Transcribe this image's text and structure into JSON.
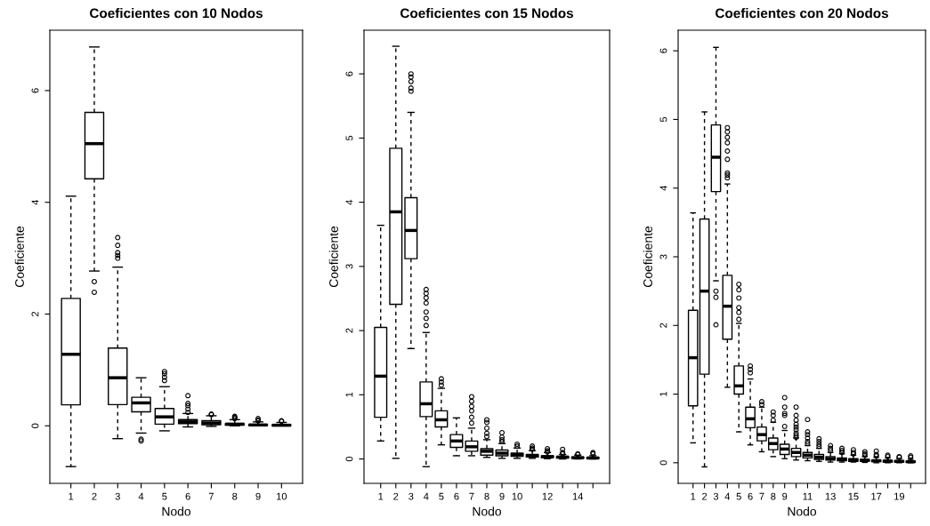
{
  "chart_data": [
    {
      "type": "box",
      "title": "Coeficientes con 10 Nodos",
      "xlabel": "Nodo",
      "ylabel": "Coeficiente",
      "categories": [
        "1",
        "2",
        "3",
        "4",
        "5",
        "6",
        "7",
        "8",
        "9",
        "10"
      ],
      "ylim": [
        -1.03,
        7.08
      ],
      "yticks": [
        0,
        2,
        4,
        6
      ],
      "grid": false,
      "boxes": [
        {
          "low": -0.73,
          "q1": 0.375,
          "median": 1.28,
          "q3": 2.28,
          "high": 4.11
        },
        {
          "low": 2.77,
          "q1": 4.42,
          "median": 5.05,
          "q3": 5.61,
          "high": 6.78,
          "outliers": [
            2.58,
            2.39
          ]
        },
        {
          "low": -0.23,
          "q1": 0.38,
          "median": 0.86,
          "q3": 1.39,
          "high": 2.84,
          "outliers": [
            3.37,
            3.23,
            3.1,
            3.05,
            3.0
          ]
        },
        {
          "low": -0.13,
          "q1": 0.25,
          "median": 0.41,
          "q3": 0.51,
          "high": 0.86,
          "outliers": [
            -0.24,
            -0.27
          ]
        },
        {
          "low": -0.09,
          "q1": 0.03,
          "median": 0.16,
          "q3": 0.31,
          "high": 0.7,
          "outliers": [
            0.97,
            0.93,
            0.87,
            0.81
          ]
        },
        {
          "low": -0.02,
          "q1": 0.04,
          "median": 0.07,
          "q3": 0.11,
          "high": 0.22,
          "outliers": [
            0.54,
            0.4,
            0.36,
            0.3,
            0.24
          ]
        },
        {
          "low": -0.01,
          "q1": 0.02,
          "median": 0.05,
          "q3": 0.09,
          "high": 0.18,
          "outliers": [
            0.21,
            0.2
          ]
        },
        {
          "low": 0.0,
          "q1": 0.01,
          "median": 0.03,
          "q3": 0.04,
          "high": 0.11,
          "outliers": [
            0.17,
            0.15,
            0.13
          ]
        },
        {
          "low": 0.0,
          "q1": 0.005,
          "median": 0.015,
          "q3": 0.025,
          "high": 0.07,
          "outliers": [
            0.13,
            0.1,
            0.09
          ]
        },
        {
          "low": 0.0,
          "q1": 0.003,
          "median": 0.01,
          "q3": 0.02,
          "high": 0.06,
          "outliers": [
            0.09,
            0.08
          ]
        }
      ]
    },
    {
      "type": "box",
      "title": "Coeficientes con 15 Nodos",
      "xlabel": "Nodo",
      "ylabel": "Coeficiente",
      "categories": [
        "1",
        "2",
        "3",
        "4",
        "5",
        "6",
        "7",
        "8",
        "9",
        "10",
        null,
        "12",
        null,
        "14",
        null
      ],
      "ylim": [
        -0.38,
        6.68
      ],
      "yticks": [
        0,
        1,
        2,
        3,
        4,
        5,
        6
      ],
      "grid": false,
      "boxes": [
        {
          "low": 0.28,
          "q1": 0.65,
          "median": 1.29,
          "q3": 2.05,
          "high": 3.64
        },
        {
          "low": 0.01,
          "q1": 2.41,
          "median": 3.85,
          "q3": 4.84,
          "high": 6.43
        },
        {
          "low": 1.72,
          "q1": 3.12,
          "median": 3.56,
          "q3": 4.07,
          "high": 5.4,
          "outliers": [
            6.0,
            5.95,
            5.88,
            5.78,
            5.73
          ]
        },
        {
          "low": -0.12,
          "q1": 0.66,
          "median": 0.86,
          "q3": 1.2,
          "high": 1.97,
          "outliers": [
            2.64,
            2.58,
            2.51,
            2.43,
            2.29,
            2.19,
            2.08
          ]
        },
        {
          "low": 0.22,
          "q1": 0.5,
          "median": 0.61,
          "q3": 0.75,
          "high": 1.1,
          "outliers": [
            1.25,
            1.2,
            1.15
          ]
        },
        {
          "low": 0.05,
          "q1": 0.18,
          "median": 0.28,
          "q3": 0.38,
          "high": 0.64
        },
        {
          "low": 0.05,
          "q1": 0.12,
          "median": 0.19,
          "q3": 0.28,
          "high": 0.48,
          "outliers": [
            0.97,
            0.9,
            0.82,
            0.75,
            0.65,
            0.56
          ]
        },
        {
          "low": 0.025,
          "q1": 0.06,
          "median": 0.12,
          "q3": 0.16,
          "high": 0.3,
          "outliers": [
            0.61,
            0.57,
            0.48,
            0.4,
            0.35
          ]
        },
        {
          "low": 0.01,
          "q1": 0.05,
          "median": 0.09,
          "q3": 0.14,
          "high": 0.24,
          "outliers": [
            0.41,
            0.34,
            0.3,
            0.27
          ]
        },
        {
          "low": 0.01,
          "q1": 0.04,
          "median": 0.065,
          "q3": 0.09,
          "high": 0.17,
          "outliers": [
            0.23,
            0.2
          ]
        },
        {
          "low": 0.01,
          "q1": 0.03,
          "median": 0.05,
          "q3": 0.07,
          "high": 0.13,
          "outliers": [
            0.2,
            0.17,
            0.15
          ]
        },
        {
          "low": 0.005,
          "q1": 0.02,
          "median": 0.035,
          "q3": 0.05,
          "high": 0.1,
          "outliers": [
            0.16,
            0.13,
            0.11
          ]
        },
        {
          "low": 0.0,
          "q1": 0.015,
          "median": 0.03,
          "q3": 0.04,
          "high": 0.07,
          "outliers": [
            0.15,
            0.1,
            0.08
          ]
        },
        {
          "low": 0.0,
          "q1": 0.01,
          "median": 0.02,
          "q3": 0.03,
          "high": 0.06,
          "outliers": [
            0.08,
            0.07
          ]
        },
        {
          "low": 0.0,
          "q1": 0.008,
          "median": 0.015,
          "q3": 0.025,
          "high": 0.05,
          "outliers": [
            0.1,
            0.08
          ]
        }
      ]
    },
    {
      "type": "box",
      "title": "Coeficientes con 20 Nodos",
      "xlabel": "Nodo",
      "ylabel": "Coeficiente",
      "categories": [
        "1",
        "2",
        "3",
        "4",
        "5",
        "6",
        "7",
        "8",
        "9",
        null,
        "11",
        null,
        "13",
        null,
        "15",
        null,
        "17",
        null,
        "19",
        null
      ],
      "ylim": [
        -0.3,
        6.3
      ],
      "yticks": [
        0,
        1,
        2,
        3,
        4,
        5,
        6
      ],
      "grid": false,
      "boxes": [
        {
          "low": 0.29,
          "q1": 0.83,
          "median": 1.53,
          "q3": 2.22,
          "high": 3.64
        },
        {
          "low": -0.06,
          "q1": 1.29,
          "median": 2.5,
          "q3": 3.55,
          "high": 5.11
        },
        {
          "low": 2.65,
          "q1": 3.95,
          "median": 4.45,
          "q3": 4.92,
          "high": 6.05,
          "outliers": [
            2.5,
            2.41,
            2.01
          ]
        },
        {
          "low": 1.1,
          "q1": 1.8,
          "median": 2.28,
          "q3": 2.73,
          "high": 4.06,
          "outliers": [
            4.88,
            4.82,
            4.74,
            4.66,
            4.54,
            4.42,
            4.22,
            4.19,
            4.15
          ]
        },
        {
          "low": 0.45,
          "q1": 1.0,
          "median": 1.12,
          "q3": 1.41,
          "high": 2.03,
          "outliers": [
            2.6,
            2.52,
            2.4,
            2.26,
            2.19,
            2.09
          ]
        },
        {
          "low": 0.26,
          "q1": 0.51,
          "median": 0.64,
          "q3": 0.81,
          "high": 1.22,
          "outliers": [
            1.41,
            1.36,
            1.31
          ]
        },
        {
          "low": 0.16,
          "q1": 0.32,
          "median": 0.41,
          "q3": 0.52,
          "high": 0.81,
          "outliers": [
            0.89,
            0.85
          ]
        },
        {
          "low": 0.09,
          "q1": 0.19,
          "median": 0.28,
          "q3": 0.36,
          "high": 0.59,
          "outliers": [
            0.74,
            0.69,
            0.62
          ]
        },
        {
          "low": 0.06,
          "q1": 0.12,
          "median": 0.2,
          "q3": 0.27,
          "high": 0.47,
          "outliers": [
            0.95,
            0.81,
            0.72,
            0.69,
            0.53
          ]
        },
        {
          "low": 0.04,
          "q1": 0.09,
          "median": 0.15,
          "q3": 0.21,
          "high": 0.36,
          "outliers": [
            0.81,
            0.69,
            0.62,
            0.56,
            0.52,
            0.48,
            0.43,
            0.4,
            0.37
          ]
        },
        {
          "low": 0.03,
          "q1": 0.07,
          "median": 0.11,
          "q3": 0.15,
          "high": 0.25,
          "outliers": [
            0.63,
            0.45,
            0.41,
            0.36,
            0.31,
            0.28
          ]
        },
        {
          "low": 0.02,
          "q1": 0.05,
          "median": 0.08,
          "q3": 0.12,
          "high": 0.21,
          "outliers": [
            0.35,
            0.31,
            0.27,
            0.24
          ]
        },
        {
          "low": 0.01,
          "q1": 0.04,
          "median": 0.06,
          "q3": 0.09,
          "high": 0.15,
          "outliers": [
            0.25,
            0.21,
            0.18
          ]
        },
        {
          "low": 0.01,
          "q1": 0.03,
          "median": 0.05,
          "q3": 0.07,
          "high": 0.13,
          "outliers": [
            0.21,
            0.18,
            0.15
          ]
        },
        {
          "low": 0.01,
          "q1": 0.02,
          "median": 0.04,
          "q3": 0.06,
          "high": 0.11,
          "outliers": [
            0.19,
            0.15,
            0.13
          ]
        },
        {
          "low": 0.005,
          "q1": 0.02,
          "median": 0.035,
          "q3": 0.05,
          "high": 0.09,
          "outliers": [
            0.16,
            0.13,
            0.11
          ]
        },
        {
          "low": 0.0,
          "q1": 0.015,
          "median": 0.03,
          "q3": 0.04,
          "high": 0.08,
          "outliers": [
            0.17,
            0.12,
            0.1
          ]
        },
        {
          "low": 0.0,
          "q1": 0.01,
          "median": 0.025,
          "q3": 0.035,
          "high": 0.07,
          "outliers": [
            0.11,
            0.09
          ]
        },
        {
          "low": 0.0,
          "q1": 0.01,
          "median": 0.02,
          "q3": 0.03,
          "high": 0.06,
          "outliers": [
            0.09,
            0.08
          ]
        },
        {
          "low": 0.0,
          "q1": 0.008,
          "median": 0.015,
          "q3": 0.025,
          "high": 0.05,
          "outliers": [
            0.1,
            0.08
          ]
        }
      ]
    }
  ]
}
